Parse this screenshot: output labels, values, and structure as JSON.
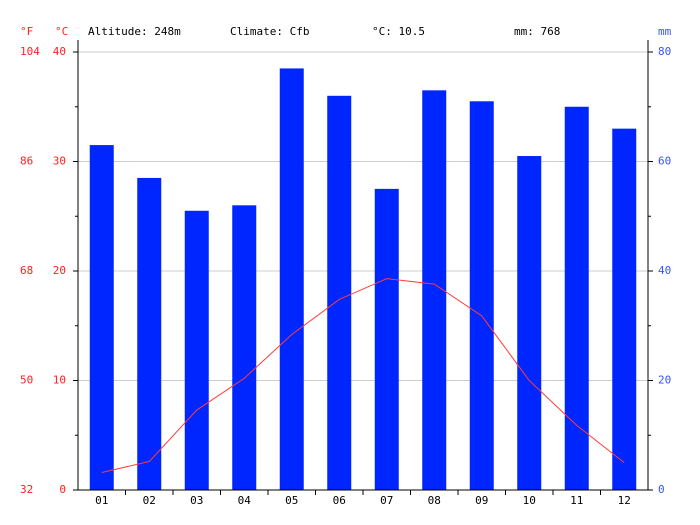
{
  "chart_data": {
    "type": "climate",
    "header": [
      "Altitude: 248m",
      "Climate: Cfb",
      "°C: 10.5",
      "mm: 768"
    ],
    "y_unit_f": "°F",
    "y_unit": "°C",
    "y2_unit": "mm",
    "categories": [
      "01",
      "02",
      "03",
      "04",
      "05",
      "06",
      "07",
      "08",
      "09",
      "10",
      "11",
      "12"
    ],
    "series": [
      {
        "type": "bar",
        "axis": "y2",
        "color": "#0026ff",
        "values": [
          63,
          57,
          51,
          52,
          77,
          72,
          55,
          73,
          71,
          61,
          70,
          66
        ]
      },
      {
        "type": "line",
        "color": "#ff3b3b",
        "values": [
          1.6,
          2.6,
          7.3,
          10.2,
          14.2,
          17.4,
          19.3,
          18.8,
          15.9,
          10.0,
          5.9,
          2.5
        ]
      }
    ],
    "ylim": [
      0,
      40
    ],
    "yticks": [
      0,
      10,
      20,
      30,
      40
    ],
    "ylim_f": [
      32,
      104
    ],
    "yticks_f": [
      32,
      50,
      68,
      86,
      104
    ],
    "y2lim": [
      0,
      80
    ],
    "y2ticks": [
      0,
      20,
      40,
      60,
      80
    ],
    "grid": true,
    "axis_color_left": "#ff2020",
    "axis_color_right": "#3355ff"
  }
}
